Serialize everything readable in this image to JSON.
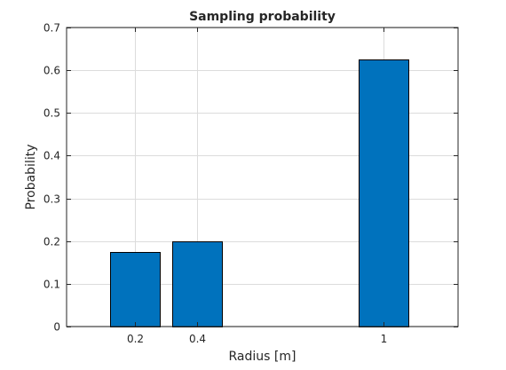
{
  "chart_data": {
    "type": "bar",
    "title": "Sampling probability",
    "xlabel": "Radius [m]",
    "ylabel": "Probability",
    "x": [
      0.2,
      0.4,
      1
    ],
    "x_tick_labels": [
      "0.2",
      "0.4",
      "1"
    ],
    "values": [
      0.175,
      0.2,
      0.625
    ],
    "xlim": [
      -0.02,
      1.24
    ],
    "ylim": [
      0,
      0.7
    ],
    "y_ticks": [
      0,
      0.1,
      0.2,
      0.3,
      0.4,
      0.5,
      0.6,
      0.7
    ],
    "y_tick_labels": [
      "0",
      "0.1",
      "0.2",
      "0.3",
      "0.4",
      "0.5",
      "0.6",
      "0.7"
    ],
    "bar_width": 0.16,
    "grid": true,
    "bar_color": "#0072BD",
    "bar_edge_color": "#000000",
    "grid_color": "#dcdcdc",
    "axis_color": "#262626"
  }
}
